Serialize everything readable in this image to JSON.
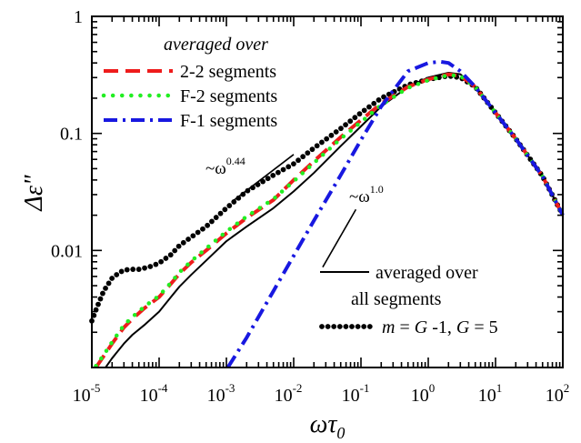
{
  "chart_data": {
    "type": "line",
    "x_scale": "log",
    "y_scale": "log",
    "xlim": [
      1e-05,
      100
    ],
    "ylim": [
      0.001,
      1
    ],
    "grid": false,
    "legend_placement": "top-left and bottom-right",
    "xlabel": {
      "main": "ωτ",
      "sub": "0"
    },
    "ylabel": {
      "main": "Δε",
      "suffix": "\""
    },
    "x_ticks": [
      {
        "value": 1e-05,
        "base": "10",
        "exp": "-5"
      },
      {
        "value": 0.0001,
        "base": "10",
        "exp": "-4"
      },
      {
        "value": 0.001,
        "base": "10",
        "exp": "-3"
      },
      {
        "value": 0.01,
        "base": "10",
        "exp": "-2"
      },
      {
        "value": 0.1,
        "base": "10",
        "exp": "-1"
      },
      {
        "value": 1,
        "base": "10",
        "exp": "0"
      },
      {
        "value": 10,
        "base": "10",
        "exp": "1"
      },
      {
        "value": 100,
        "base": "10",
        "exp": "2"
      }
    ],
    "y_ticks": [
      {
        "value": 1,
        "label": "1"
      },
      {
        "value": 0.1,
        "label": "0.1"
      },
      {
        "value": 0.01,
        "label": "0.01"
      }
    ],
    "legend_top_title": "averaged over",
    "legend_bottom": {
      "line1": "averaged over",
      "line2": "all segments",
      "dots_text": {
        "m": "m",
        "eq1": " = ",
        "G1": "G",
        "rest1": " -1, ",
        "G2": "G",
        "rest2": " = 5"
      }
    },
    "annotations": [
      {
        "base": "~ω",
        "exp": "0.44",
        "slope": 0.44
      },
      {
        "base": "~ω",
        "exp": "1.0",
        "slope": 1.0
      }
    ],
    "series": [
      {
        "name": "2-2 segments",
        "color": "#ee1c1c",
        "style": "dashed",
        "x": [
          1.15e-05,
          1.5e-05,
          2e-05,
          3e-05,
          4e-05,
          6e-05,
          0.0001,
          0.00015,
          0.0002,
          0.0003,
          0.0005,
          0.001,
          0.002,
          0.005,
          0.01,
          0.02,
          0.05,
          0.1,
          0.2,
          0.5,
          1,
          2,
          3,
          5,
          10,
          20,
          50,
          100
        ],
        "y": [
          0.001,
          0.00125,
          0.0016,
          0.0022,
          0.0026,
          0.0032,
          0.004,
          0.0052,
          0.0063,
          0.0079,
          0.01,
          0.014,
          0.019,
          0.027,
          0.04,
          0.058,
          0.093,
          0.13,
          0.18,
          0.25,
          0.29,
          0.32,
          0.31,
          0.25,
          0.15,
          0.09,
          0.043,
          0.02
        ]
      },
      {
        "name": "F-2 segments",
        "color": "#22ee22",
        "style": "dotted",
        "x": [
          1.15e-05,
          1.5e-05,
          2e-05,
          3e-05,
          4e-05,
          6e-05,
          0.0001,
          0.00015,
          0.0002,
          0.0003,
          0.0005,
          0.001,
          0.002,
          0.005,
          0.01,
          0.02,
          0.05,
          0.1,
          0.2,
          0.5,
          1,
          2,
          3,
          5,
          10,
          20,
          50,
          100
        ],
        "y": [
          0.00103,
          0.00128,
          0.00165,
          0.0023,
          0.0027,
          0.0033,
          0.0041,
          0.0053,
          0.0065,
          0.0081,
          0.0104,
          0.0145,
          0.0195,
          0.0275,
          0.039,
          0.056,
          0.09,
          0.125,
          0.175,
          0.245,
          0.285,
          0.315,
          0.31,
          0.25,
          0.15,
          0.09,
          0.043,
          0.02
        ]
      },
      {
        "name": "F-1 segments",
        "color": "#1818e0",
        "style": "dashdot",
        "x": [
          0.00105,
          0.002,
          0.005,
          0.01,
          0.02,
          0.05,
          0.1,
          0.2,
          0.5,
          1,
          1.5,
          2,
          3,
          5,
          10,
          20,
          50,
          100
        ],
        "y": [
          0.001,
          0.0018,
          0.0045,
          0.009,
          0.018,
          0.044,
          0.088,
          0.17,
          0.34,
          0.4,
          0.41,
          0.4,
          0.34,
          0.25,
          0.15,
          0.09,
          0.043,
          0.02
        ]
      },
      {
        "name": "averaged over all segments",
        "color": "#000000",
        "style": "solid",
        "x": [
          1.6e-05,
          2e-05,
          3e-05,
          4e-05,
          6e-05,
          0.0001,
          0.00015,
          0.0002,
          0.0003,
          0.0005,
          0.001,
          0.002,
          0.005,
          0.01,
          0.02,
          0.05,
          0.1,
          0.2,
          0.5,
          1,
          2,
          3,
          5,
          10,
          20,
          50,
          100
        ],
        "y": [
          0.001,
          0.0012,
          0.0016,
          0.0019,
          0.0023,
          0.003,
          0.004,
          0.0049,
          0.0062,
          0.0082,
          0.012,
          0.016,
          0.023,
          0.032,
          0.046,
          0.078,
          0.115,
          0.17,
          0.25,
          0.3,
          0.33,
          0.32,
          0.25,
          0.15,
          0.09,
          0.043,
          0.02
        ]
      },
      {
        "name": "m = G -1, G = 5",
        "color": "#000000",
        "style": "dots",
        "x": [
          1e-05,
          1.2e-05,
          1.5e-05,
          2e-05,
          2.5e-05,
          3e-05,
          4e-05,
          5e-05,
          7e-05,
          0.0001,
          0.00015,
          0.0002,
          0.0003,
          0.0005,
          0.001,
          0.002,
          0.005,
          0.01,
          0.02,
          0.05,
          0.1,
          0.2,
          0.5,
          1,
          2,
          3,
          5,
          10,
          20,
          50,
          100
        ],
        "y": [
          0.0025,
          0.0033,
          0.0045,
          0.0058,
          0.0064,
          0.0068,
          0.0069,
          0.0069,
          0.0072,
          0.0078,
          0.0092,
          0.011,
          0.013,
          0.016,
          0.023,
          0.032,
          0.044,
          0.055,
          0.075,
          0.11,
          0.15,
          0.2,
          0.26,
          0.29,
          0.31,
          0.3,
          0.25,
          0.15,
          0.09,
          0.043,
          0.02
        ]
      }
    ]
  }
}
